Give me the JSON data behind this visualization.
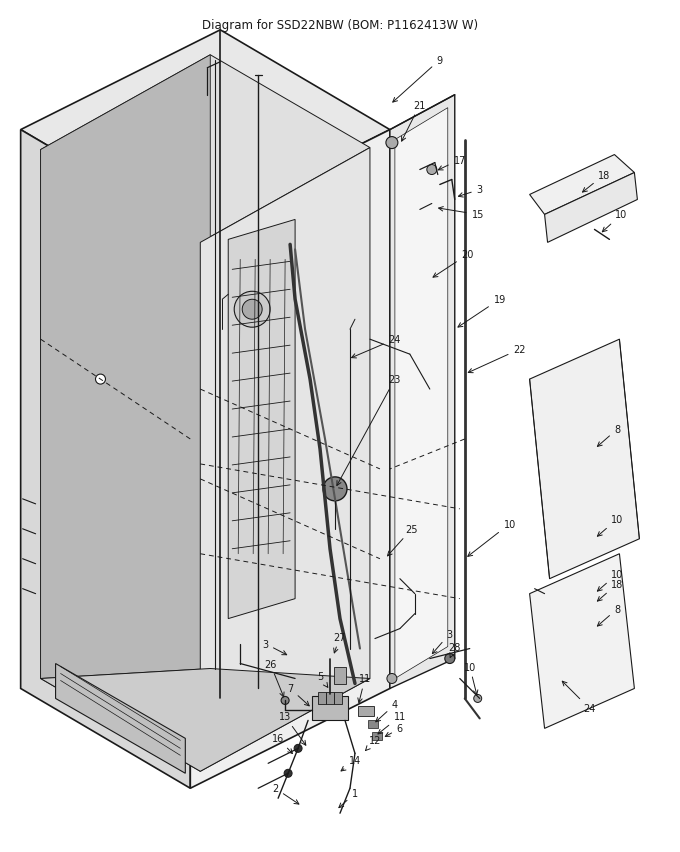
{
  "title": "Diagram for SSD22NBW (BOM: P1162413W W)",
  "title_fontsize": 8.5,
  "bg_color": "#ffffff",
  "line_color": "#1a1a1a",
  "figsize": [
    6.8,
    8.53
  ],
  "dpi": 100
}
